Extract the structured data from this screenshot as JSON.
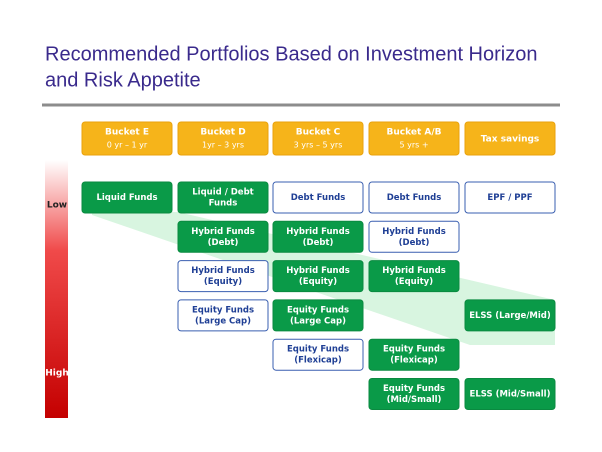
{
  "title": [
    "Recommended Portfolios Based on Investment Horizon",
    "and Risk Appetite"
  ],
  "risk_labels": {
    "low": "Low",
    "high": "High"
  },
  "headers": [
    {
      "name": "Bucket E",
      "range": "0 yr – 1 yr"
    },
    {
      "name": "Bucket D",
      "range": "1yr – 3 yrs"
    },
    {
      "name": "Bucket C",
      "range": "3 yrs – 5 yrs"
    },
    {
      "name": "Bucket A/B",
      "range": "5 yrs +"
    },
    {
      "name": "Tax savings",
      "range": null
    }
  ],
  "rows": [
    [
      {
        "lines": [
          "Liquid Funds"
        ],
        "highlighted": true
      },
      {
        "lines": [
          "Liquid / Debt",
          "Funds"
        ],
        "highlighted": true
      },
      {
        "lines": [
          "Debt Funds"
        ],
        "highlighted": false
      },
      {
        "lines": [
          "Debt Funds"
        ],
        "highlighted": false
      },
      {
        "lines": [
          "EPF / PPF"
        ],
        "highlighted": false
      }
    ],
    [
      null,
      {
        "lines": [
          "Hybrid Funds",
          "(Debt)"
        ],
        "highlighted": true
      },
      {
        "lines": [
          "Hybrid Funds",
          "(Debt)"
        ],
        "highlighted": true
      },
      {
        "lines": [
          "Hybrid Funds",
          "(Debt)"
        ],
        "highlighted": false
      },
      null
    ],
    [
      null,
      {
        "lines": [
          "Hybrid Funds",
          "(Equity)"
        ],
        "highlighted": false
      },
      {
        "lines": [
          "Hybrid Funds",
          "(Equity)"
        ],
        "highlighted": true
      },
      {
        "lines": [
          "Hybrid Funds",
          "(Equity)"
        ],
        "highlighted": true
      },
      null
    ],
    [
      null,
      {
        "lines": [
          "Equity Funds",
          "(Large Cap)"
        ],
        "highlighted": false
      },
      {
        "lines": [
          "Equity Funds",
          "(Large Cap)"
        ],
        "highlighted": true
      },
      null,
      {
        "lines": [
          "ELSS (Large/Mid)"
        ],
        "highlighted": true
      }
    ],
    [
      null,
      null,
      {
        "lines": [
          "Equity Funds",
          "(Flexicap)"
        ],
        "highlighted": false
      },
      {
        "lines": [
          "Equity Funds",
          "(Flexicap)"
        ],
        "highlighted": true
      },
      null
    ],
    [
      null,
      null,
      null,
      {
        "lines": [
          "Equity Funds",
          "(Mid/Small)"
        ],
        "highlighted": true
      },
      {
        "lines": [
          "ELSS (Mid/Small)"
        ],
        "highlighted": true
      }
    ]
  ]
}
